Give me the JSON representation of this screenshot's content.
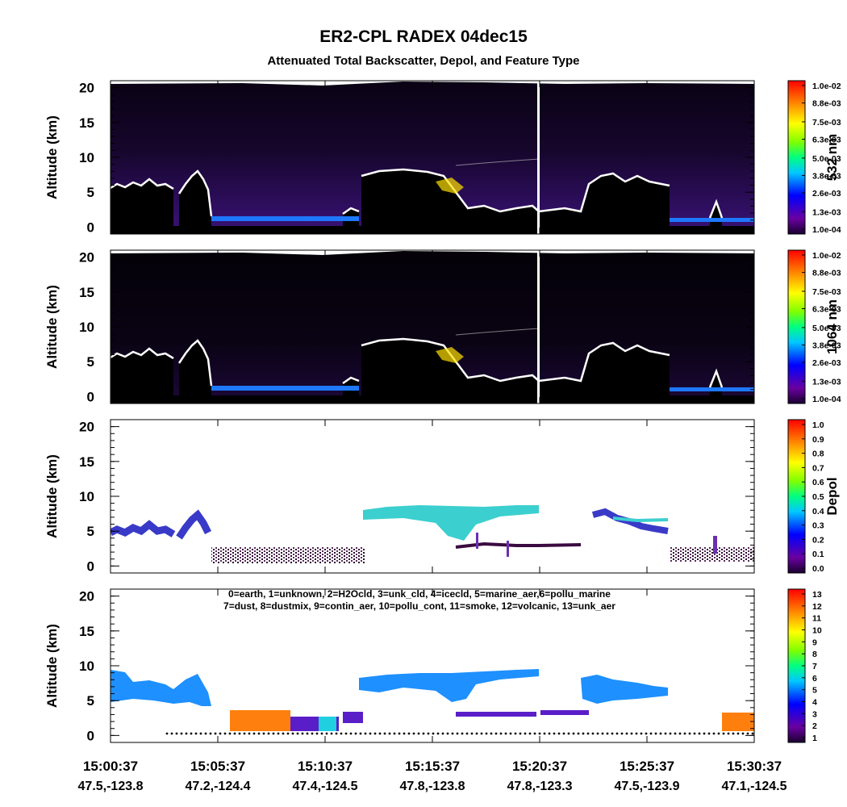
{
  "chart_data": {
    "type": "lidar_curtain",
    "title": "ER2-CPL RADEX 04dec15",
    "subtitle": "Attenuated Total Backscatter, Depol, and Feature Type",
    "x_tick_times": [
      "15:00:37",
      "15:05:37",
      "15:10:37",
      "15:15:37",
      "15:20:37",
      "15:25:37",
      "15:30:37"
    ],
    "x_tick_coords": [
      "47.5,-123.8",
      "47.2,-124.4",
      "47.4,-124.5",
      "47.8,-123.8",
      "47.8,-123.3",
      "47.5,-123.9",
      "47.1,-124.5"
    ],
    "panels": [
      {
        "ylabel": "Altitude (km)",
        "ylim": [
          -1,
          21
        ],
        "yticks": [
          0,
          5,
          10,
          15,
          20
        ],
        "cbar_label": "532 nm",
        "clim": [
          0.0001,
          0.01
        ],
        "cbar_ticks": [
          {
            "value": 0.0001,
            "label": "1.0e-04"
          },
          {
            "value": 0.0013,
            "label": "1.3e-03"
          },
          {
            "value": 0.0026,
            "label": "2.6e-03"
          },
          {
            "value": 0.0038,
            "label": "3.8e-03"
          },
          {
            "value": 0.005,
            "label": "5.0e-03"
          },
          {
            "value": 0.0063,
            "label": "6.3e-03"
          },
          {
            "value": 0.0075,
            "label": "7.5e-03"
          },
          {
            "value": 0.0088,
            "label": "8.8e-03"
          },
          {
            "value": 0.01,
            "label": "1.0e-02"
          }
        ]
      },
      {
        "ylabel": "Altitude (km)",
        "ylim": [
          -1,
          21
        ],
        "yticks": [
          0,
          5,
          10,
          15,
          20
        ],
        "cbar_label": "1064 nm",
        "clim": [
          0.0001,
          0.01
        ],
        "cbar_ticks": [
          {
            "value": 0.0001,
            "label": "1.0e-04"
          },
          {
            "value": 0.0013,
            "label": "1.3e-03"
          },
          {
            "value": 0.0026,
            "label": "2.6e-03"
          },
          {
            "value": 0.0038,
            "label": "3.8e-03"
          },
          {
            "value": 0.005,
            "label": "5.0e-03"
          },
          {
            "value": 0.0063,
            "label": "6.3e-03"
          },
          {
            "value": 0.0075,
            "label": "7.5e-03"
          },
          {
            "value": 0.0088,
            "label": "8.8e-03"
          },
          {
            "value": 0.01,
            "label": "1.0e-02"
          }
        ]
      },
      {
        "ylabel": "Altitude (km)",
        "ylim": [
          -1,
          21
        ],
        "yticks": [
          0,
          5,
          10,
          15,
          20
        ],
        "cbar_label": "Depol",
        "clim": [
          0,
          1
        ],
        "cbar_ticks": [
          {
            "value": 0,
            "label": "0.0"
          },
          0.1,
          0.2,
          0.3,
          0.4,
          0.5,
          0.6,
          0.7,
          0.8,
          0.9,
          {
            "value": 1,
            "label": "1.0"
          }
        ]
      },
      {
        "ylabel": "Altitude (km)",
        "ylim": [
          -1,
          21
        ],
        "yticks": [
          0,
          5,
          10,
          15,
          20
        ],
        "clim": [
          1,
          13
        ],
        "cbar_ticks": [
          1,
          2,
          3,
          4,
          5,
          6,
          7,
          8,
          9,
          10,
          11,
          12,
          13
        ],
        "legend_lines": [
          "0=earth, 1=unknown, 2=H2Ocld, 3=unk_cld, 4=icecld, 5=marine_aer,6=pollu_marine",
          "7=dust, 8=dustmix, 9=contin_aer, 10=pollu_cont, 11=smoke, 12=volcanic, 13=unk_aer"
        ]
      }
    ]
  }
}
